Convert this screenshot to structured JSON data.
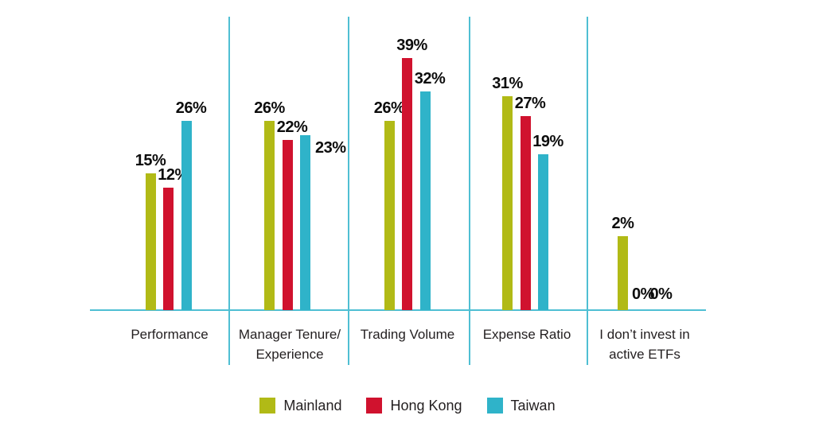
{
  "chart_data": {
    "type": "bar",
    "title": "",
    "categories": [
      "Performance",
      "Manager Tenure/\nExperience",
      "Trading Volume",
      "Expense Ratio",
      "I don’t invest in\nactive ETFs"
    ],
    "series": [
      {
        "name": "Mainland",
        "color": "#b1ba16",
        "values": [
          15,
          26,
          26,
          31,
          2
        ]
      },
      {
        "name": "Hong Kong",
        "color": "#d0122e",
        "values": [
          12,
          22,
          39,
          27,
          0
        ]
      },
      {
        "name": "Taiwan",
        "color": "#2fb3c9",
        "values": [
          26,
          23,
          32,
          19,
          0
        ]
      }
    ],
    "value_suffix": "%",
    "value_labels_shown": true,
    "axis_color": "#4fbfd3",
    "text_color": "#231f20",
    "grid": false,
    "legend_position": "bottom",
    "ylim": [
      0,
      39
    ]
  },
  "legend": {
    "items": [
      {
        "label": "Mainland",
        "color": "#b1ba16"
      },
      {
        "label": "Hong Kong",
        "color": "#d0122e"
      },
      {
        "label": "Taiwan",
        "color": "#2fb3c9"
      }
    ]
  }
}
